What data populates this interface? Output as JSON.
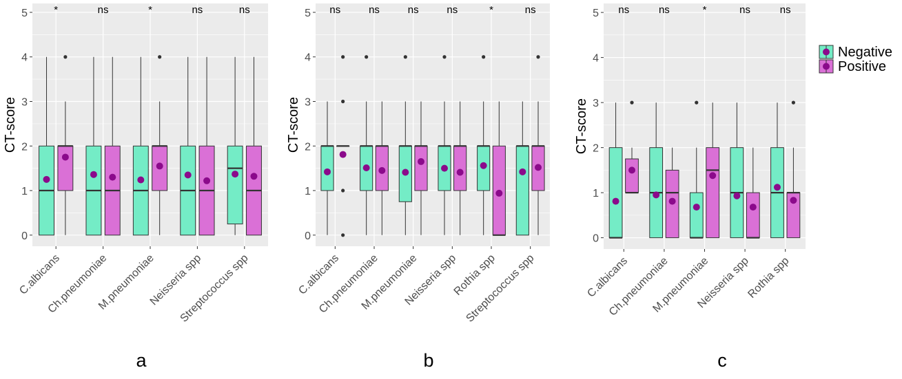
{
  "colors": {
    "negative": "#74ecc6",
    "positive": "#da70d6",
    "mean_point": "#8b0a8b",
    "panel_bg": "#ebebeb",
    "grid": "#ffffff"
  },
  "legend": {
    "items": [
      {
        "label": "Negative",
        "color": "#74ecc6"
      },
      {
        "label": "Positive",
        "color": "#da70d6"
      }
    ]
  },
  "chart_data": [
    {
      "type": "box",
      "panel_label": "a",
      "ylabel": "CT-score",
      "ylim": [
        -0.25,
        5.2
      ],
      "yticks": [
        0,
        1,
        2,
        3,
        4,
        5
      ],
      "categories": [
        "C.albicans",
        "Ch.pneumoniae",
        "M.pneumoniae",
        "Neisseria spp",
        "Streptococcus spp"
      ],
      "significance": [
        "*",
        "ns",
        "*",
        "ns",
        "ns"
      ],
      "series": [
        {
          "name": "Negative",
          "boxes": [
            {
              "min": 0,
              "q1": 0,
              "median": 1,
              "q3": 2,
              "max": 4,
              "mean": 1.25,
              "outliers": []
            },
            {
              "min": 0,
              "q1": 0,
              "median": 1,
              "q3": 2,
              "max": 4,
              "mean": 1.36,
              "outliers": []
            },
            {
              "min": 0,
              "q1": 0,
              "median": 1,
              "q3": 2,
              "max": 4,
              "mean": 1.24,
              "outliers": []
            },
            {
              "min": 0,
              "q1": 0,
              "median": 1,
              "q3": 2,
              "max": 4,
              "mean": 1.35,
              "outliers": []
            },
            {
              "min": 0,
              "q1": 0.25,
              "median": 1.5,
              "q3": 2,
              "max": 4,
              "mean": 1.37,
              "outliers": []
            }
          ]
        },
        {
          "name": "Positive",
          "boxes": [
            {
              "min": 0,
              "q1": 1,
              "median": 2,
              "q3": 2,
              "max": 3,
              "mean": 1.75,
              "outliers": [
                4
              ]
            },
            {
              "min": 0,
              "q1": 0,
              "median": 1,
              "q3": 2,
              "max": 4,
              "mean": 1.3,
              "outliers": []
            },
            {
              "min": 0,
              "q1": 1,
              "median": 2,
              "q3": 2,
              "max": 3,
              "mean": 1.55,
              "outliers": [
                4
              ]
            },
            {
              "min": 0,
              "q1": 0,
              "median": 1,
              "q3": 2,
              "max": 4,
              "mean": 1.22,
              "outliers": []
            },
            {
              "min": 0,
              "q1": 0,
              "median": 1,
              "q3": 2,
              "max": 4,
              "mean": 1.32,
              "outliers": []
            }
          ]
        }
      ]
    },
    {
      "type": "box",
      "panel_label": "b",
      "ylabel": "CT-score",
      "ylim": [
        -0.25,
        5.2
      ],
      "yticks": [
        0,
        1,
        2,
        3,
        4,
        5
      ],
      "categories": [
        "C.albicans",
        "Ch.pneumoniae",
        "M.pneumoniae",
        "Neisseria spp",
        "Rothia spp",
        "Streptococcus spp"
      ],
      "significance": [
        "ns",
        "ns",
        "ns",
        "ns",
        "*",
        "ns"
      ],
      "series": [
        {
          "name": "Negative",
          "boxes": [
            {
              "min": 0,
              "q1": 1,
              "median": 2,
              "q3": 2,
              "max": 3,
              "mean": 1.42,
              "outliers": []
            },
            {
              "min": 0,
              "q1": 1,
              "median": 2,
              "q3": 2,
              "max": 3,
              "mean": 1.51,
              "outliers": [
                4
              ]
            },
            {
              "min": 0,
              "q1": 0.75,
              "median": 2,
              "q3": 2,
              "max": 3,
              "mean": 1.41,
              "outliers": [
                4
              ]
            },
            {
              "min": 0,
              "q1": 1,
              "median": 2,
              "q3": 2,
              "max": 3,
              "mean": 1.5,
              "outliers": [
                4
              ]
            },
            {
              "min": 0,
              "q1": 1,
              "median": 2,
              "q3": 2,
              "max": 3,
              "mean": 1.56,
              "outliers": [
                4
              ]
            },
            {
              "min": 0,
              "q1": 0,
              "median": 2,
              "q3": 2,
              "max": 3,
              "mean": 1.42,
              "outliers": []
            }
          ]
        },
        {
          "name": "Positive",
          "boxes": [
            {
              "min": 2,
              "q1": 2,
              "median": 2,
              "q3": 2,
              "max": 2,
              "mean": 1.81,
              "outliers": [
                0,
                1,
                3,
                4
              ]
            },
            {
              "min": 0,
              "q1": 1,
              "median": 2,
              "q3": 2,
              "max": 3,
              "mean": 1.45,
              "outliers": []
            },
            {
              "min": 0,
              "q1": 1,
              "median": 2,
              "q3": 2,
              "max": 3,
              "mean": 1.65,
              "outliers": []
            },
            {
              "min": 0,
              "q1": 1,
              "median": 2,
              "q3": 2,
              "max": 3,
              "mean": 1.41,
              "outliers": []
            },
            {
              "min": 0,
              "q1": 0,
              "median": 0,
              "q3": 2,
              "max": 3,
              "mean": 0.94,
              "outliers": []
            },
            {
              "min": 0,
              "q1": 1,
              "median": 2,
              "q3": 2,
              "max": 3,
              "mean": 1.52,
              "outliers": [
                4
              ]
            }
          ]
        }
      ]
    },
    {
      "type": "box",
      "panel_label": "c",
      "ylabel": "CT-score",
      "ylim": [
        -0.25,
        5.2
      ],
      "yticks": [
        0,
        1,
        2,
        3,
        4,
        5
      ],
      "categories": [
        "C.albicans",
        "Ch.pneumoniae",
        "M.pneumoniae",
        "Neisseria spp",
        "Rothia spp"
      ],
      "significance": [
        "ns",
        "ns",
        "*",
        "ns",
        "ns"
      ],
      "series": [
        {
          "name": "Negative",
          "boxes": [
            {
              "min": 0,
              "q1": 0,
              "median": 0,
              "q3": 2,
              "max": 3,
              "mean": 0.81,
              "outliers": []
            },
            {
              "min": 0,
              "q1": 0,
              "median": 1,
              "q3": 2,
              "max": 3,
              "mean": 0.95,
              "outliers": []
            },
            {
              "min": 0,
              "q1": 0,
              "median": 0,
              "q3": 1,
              "max": 2,
              "mean": 0.68,
              "outliers": [
                3
              ]
            },
            {
              "min": 0,
              "q1": 0,
              "median": 1,
              "q3": 2,
              "max": 3,
              "mean": 0.93,
              "outliers": []
            },
            {
              "min": 0,
              "q1": 0,
              "median": 1,
              "q3": 2,
              "max": 3,
              "mean": 1.12,
              "outliers": []
            }
          ]
        },
        {
          "name": "Positive",
          "boxes": [
            {
              "min": 1,
              "q1": 1,
              "median": 1,
              "q3": 1.75,
              "max": 2,
              "mean": 1.5,
              "outliers": [
                3
              ]
            },
            {
              "min": 0,
              "q1": 0,
              "median": 1,
              "q3": 1.5,
              "max": 2,
              "mean": 0.81,
              "outliers": []
            },
            {
              "min": 0,
              "q1": 0,
              "median": 1.5,
              "q3": 2,
              "max": 3,
              "mean": 1.38,
              "outliers": []
            },
            {
              "min": 0,
              "q1": 0,
              "median": 0,
              "q3": 1,
              "max": 2,
              "mean": 0.68,
              "outliers": []
            },
            {
              "min": 0,
              "q1": 0,
              "median": 1,
              "q3": 1,
              "max": 2,
              "mean": 0.83,
              "outliers": [
                3
              ]
            }
          ]
        }
      ]
    }
  ]
}
